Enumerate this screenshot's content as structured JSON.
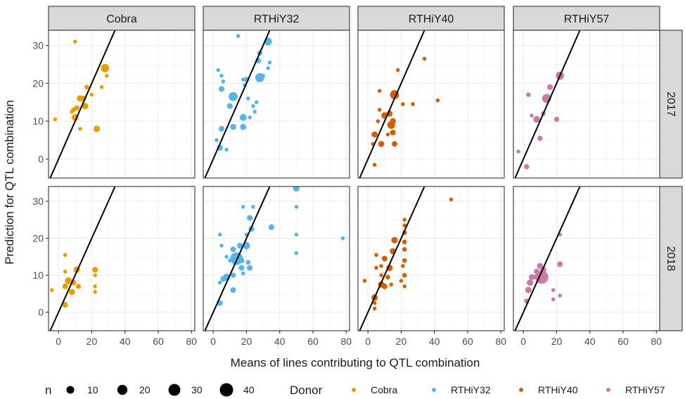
{
  "chart_data": {
    "type": "scatter",
    "facet_cols": [
      "Cobra",
      "RTHiY32",
      "RTHiY40",
      "RTHiY57"
    ],
    "facet_rows": [
      "2017",
      "2018"
    ],
    "xlabel": "Means of lines contributing to QTL combination",
    "ylabel": "Prediction for QTL combination",
    "xlim": [
      -6,
      82
    ],
    "ylim": [
      -5,
      34
    ],
    "xticks": [
      0,
      20,
      40,
      60,
      80
    ],
    "yticks": [
      0,
      10,
      20,
      30
    ],
    "grid": true,
    "reference_line": {
      "slope": 1,
      "intercept": 0
    },
    "colors": {
      "Cobra": "#E69F00",
      "RTHiY32": "#56B4E9",
      "RTHiY40": "#D55E00",
      "RTHiY57": "#CC79A7",
      "panel_border": "#333333",
      "strip_bg": "#D9D9D9",
      "grid": "#EBEBEB"
    },
    "legend_position": "bottom",
    "legend": {
      "size": {
        "title": "n",
        "values": [
          10,
          20,
          30,
          40
        ],
        "labels": [
          "10",
          "20",
          "30",
          "40"
        ]
      },
      "color": {
        "title": "Donor",
        "entries": [
          "Cobra",
          "RTHiY32",
          "RTHiY40",
          "RTHiY57"
        ]
      }
    },
    "series": [
      {
        "name": "Cobra",
        "year": "2017",
        "points": [
          [
            10,
            31,
            1
          ],
          [
            -2,
            10.5,
            1
          ],
          [
            8,
            12.5,
            1
          ],
          [
            9,
            13,
            2
          ],
          [
            11,
            13.5,
            3
          ],
          [
            13,
            16,
            6
          ],
          [
            15,
            16,
            4
          ],
          [
            16,
            14,
            6
          ],
          [
            17,
            19,
            2
          ],
          [
            20,
            17,
            1
          ],
          [
            10,
            11,
            7
          ],
          [
            13,
            8,
            1
          ],
          [
            23,
            8,
            6
          ],
          [
            26,
            19,
            1
          ],
          [
            28,
            24,
            12
          ],
          [
            29,
            22,
            1
          ]
        ]
      },
      {
        "name": "RTHiY32",
        "year": "2017",
        "points": [
          [
            3,
            23.5,
            1
          ],
          [
            5,
            22,
            1
          ],
          [
            6,
            20.5,
            1
          ],
          [
            5,
            18.5,
            4
          ],
          [
            2,
            5,
            1
          ],
          [
            4,
            3,
            5
          ],
          [
            5,
            8,
            4
          ],
          [
            8,
            2.5,
            1
          ],
          [
            10,
            14,
            4
          ],
          [
            12,
            16.5,
            15
          ],
          [
            12,
            8.5,
            5
          ],
          [
            15,
            32.5,
            1
          ],
          [
            18,
            21,
            1
          ],
          [
            19,
            19.5,
            1
          ],
          [
            20,
            21,
            3
          ],
          [
            21,
            16,
            1
          ],
          [
            22,
            11,
            1
          ],
          [
            18,
            11,
            7
          ],
          [
            18,
            8.5,
            5
          ],
          [
            24,
            14,
            1
          ],
          [
            25,
            12.5,
            1
          ],
          [
            26,
            15,
            1
          ],
          [
            27,
            26,
            4
          ],
          [
            27,
            21,
            1
          ],
          [
            28,
            28,
            3
          ],
          [
            28,
            21.5,
            15
          ],
          [
            30,
            22,
            1
          ],
          [
            33,
            31,
            10
          ],
          [
            33,
            24,
            1
          ],
          [
            34,
            25.5,
            1
          ]
        ]
      },
      {
        "name": "RTHiY40",
        "year": "2017",
        "points": [
          [
            4,
            -1.5,
            1
          ],
          [
            3,
            4,
            1
          ],
          [
            4,
            6.5,
            5
          ],
          [
            6,
            10,
            1
          ],
          [
            7,
            13,
            1
          ],
          [
            7,
            18,
            1
          ],
          [
            8,
            4,
            5
          ],
          [
            10,
            11.5,
            6
          ],
          [
            12,
            6.5,
            1
          ],
          [
            13,
            12,
            5
          ],
          [
            14,
            9,
            10
          ],
          [
            15,
            7,
            4
          ],
          [
            15,
            10,
            5
          ],
          [
            16,
            17,
            15
          ],
          [
            16,
            4,
            4
          ],
          [
            18,
            23.5,
            1
          ],
          [
            21,
            14.5,
            1
          ],
          [
            27,
            14.5,
            1
          ],
          [
            34,
            26.5,
            1
          ],
          [
            42,
            15.5,
            1
          ]
        ]
      },
      {
        "name": "RTHiY57",
        "year": "2017",
        "points": [
          [
            -3,
            2,
            1
          ],
          [
            2,
            -2,
            3
          ],
          [
            3,
            17,
            2
          ],
          [
            5,
            11.5,
            1
          ],
          [
            8,
            10.5,
            7
          ],
          [
            10,
            5.5,
            3
          ],
          [
            12,
            12,
            2
          ],
          [
            14,
            16,
            15
          ],
          [
            16,
            19,
            4
          ],
          [
            20,
            10.5,
            3
          ],
          [
            22,
            22,
            12
          ]
        ]
      },
      {
        "name": "Cobra",
        "year": "2018",
        "points": [
          [
            -4,
            6,
            1
          ],
          [
            4,
            2,
            4
          ],
          [
            4,
            7,
            4
          ],
          [
            4,
            11,
            1
          ],
          [
            4,
            15.5,
            1
          ],
          [
            6,
            8.5,
            8
          ],
          [
            8,
            5.5,
            5
          ],
          [
            9,
            8,
            4
          ],
          [
            11,
            11.5,
            6
          ],
          [
            12,
            7,
            3
          ],
          [
            22,
            11.5,
            4
          ],
          [
            22,
            7,
            1
          ],
          [
            22,
            5.5,
            1
          ],
          [
            22,
            10,
            1
          ]
        ]
      },
      {
        "name": "RTHiY32",
        "year": "2018",
        "points": [
          [
            4,
            21,
            1
          ],
          [
            5,
            18,
            1
          ],
          [
            4,
            8,
            1
          ],
          [
            4,
            2.5,
            4
          ],
          [
            6,
            9,
            4
          ],
          [
            8,
            9.5,
            8
          ],
          [
            8,
            15,
            1
          ],
          [
            10,
            14,
            1
          ],
          [
            12,
            17,
            4
          ],
          [
            12,
            10,
            3
          ],
          [
            12,
            6,
            4
          ],
          [
            14,
            14.5,
            35
          ],
          [
            16,
            18,
            4
          ],
          [
            17,
            14,
            4
          ],
          [
            17,
            12,
            4
          ],
          [
            18,
            10.5,
            1
          ],
          [
            18,
            28.5,
            1
          ],
          [
            20,
            21,
            1
          ],
          [
            20,
            18,
            8
          ],
          [
            21,
            13.5,
            2
          ],
          [
            22,
            12,
            4
          ],
          [
            22,
            25.5,
            4
          ],
          [
            23,
            22.5,
            4
          ],
          [
            24,
            28.5,
            1
          ],
          [
            35,
            23,
            4
          ],
          [
            50,
            33.5,
            6
          ],
          [
            50,
            28.5,
            1
          ],
          [
            50,
            21,
            1
          ],
          [
            50,
            16,
            1
          ],
          [
            78,
            20,
            1
          ]
        ]
      },
      {
        "name": "RTHiY40",
        "year": "2018",
        "points": [
          [
            -2,
            8.5,
            1
          ],
          [
            4,
            1,
            1
          ],
          [
            4,
            2.5,
            1
          ],
          [
            4,
            4,
            6
          ],
          [
            5,
            12,
            1
          ],
          [
            5,
            15.5,
            1
          ],
          [
            8,
            12.5,
            1
          ],
          [
            8,
            10,
            1
          ],
          [
            8,
            7.5,
            6
          ],
          [
            10,
            7,
            4
          ],
          [
            10,
            14.5,
            4
          ],
          [
            12,
            9.5,
            2
          ],
          [
            13,
            12,
            6
          ],
          [
            14,
            7.5,
            1
          ],
          [
            15,
            16.5,
            5
          ],
          [
            16,
            19.5,
            6
          ],
          [
            20,
            8.5,
            1
          ],
          [
            21,
            12.5,
            1
          ],
          [
            22,
            7,
            1
          ],
          [
            22,
            10,
            2
          ],
          [
            22,
            14,
            2
          ],
          [
            22,
            17,
            2
          ],
          [
            22,
            19,
            2
          ],
          [
            22,
            21.5,
            2
          ],
          [
            22,
            23.5,
            1
          ],
          [
            22,
            25,
            1
          ],
          [
            50,
            30.5,
            1
          ]
        ]
      },
      {
        "name": "RTHiY57",
        "year": "2018",
        "points": [
          [
            2,
            3,
            3
          ],
          [
            3,
            6,
            6
          ],
          [
            4,
            8,
            6
          ],
          [
            5,
            9.5,
            4
          ],
          [
            6,
            9.5,
            3
          ],
          [
            8,
            11,
            4
          ],
          [
            10,
            12.5,
            5
          ],
          [
            11,
            9.5,
            40
          ],
          [
            12,
            11.5,
            4
          ],
          [
            18,
            6,
            1
          ],
          [
            18,
            3.5,
            1
          ],
          [
            22,
            13,
            4
          ],
          [
            22,
            4.5,
            1
          ],
          [
            22,
            21,
            1
          ]
        ]
      }
    ]
  }
}
